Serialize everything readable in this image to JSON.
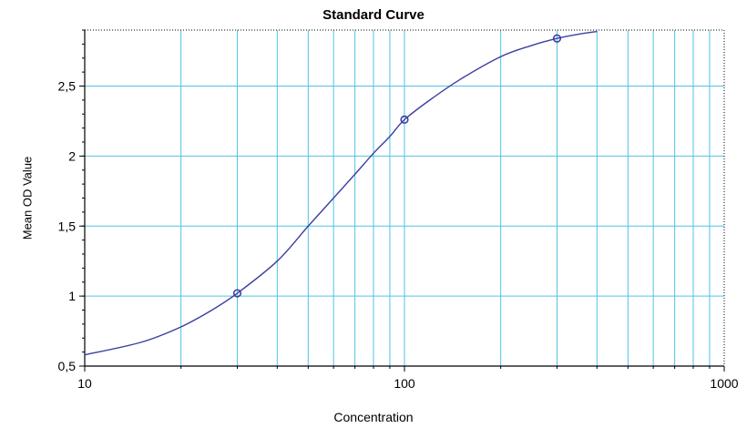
{
  "chart_data": {
    "type": "line",
    "title": "Standard Curve",
    "xlabel": "Concentration",
    "ylabel": "Mean OD Value",
    "x_scale": "log",
    "xlim": [
      10,
      1000
    ],
    "ylim": [
      0.5,
      2.9
    ],
    "grid": true,
    "x_ticks": [
      10,
      100,
      1000
    ],
    "x_tick_labels": [
      "10",
      "100",
      "1000"
    ],
    "y_ticks": [
      0.5,
      1,
      1.5,
      2,
      2.5
    ],
    "y_tick_labels": [
      "0,5",
      "1",
      "1,5",
      "2",
      "2,5"
    ],
    "series": [
      {
        "kind": "points",
        "x": [
          30,
          100,
          300
        ],
        "y": [
          1.02,
          2.26,
          2.84
        ]
      },
      {
        "kind": "fitted-curve",
        "x": [
          10,
          15,
          20,
          25,
          30,
          40,
          50,
          60,
          70,
          80,
          90,
          100,
          120,
          150,
          200,
          250,
          300,
          350,
          400
        ],
        "y": [
          0.58,
          0.67,
          0.78,
          0.9,
          1.02,
          1.25,
          1.5,
          1.7,
          1.87,
          2.02,
          2.14,
          2.26,
          2.4,
          2.55,
          2.71,
          2.79,
          2.84,
          2.87,
          2.89
        ]
      }
    ],
    "colors": {
      "curve": "#3b3fa0",
      "grid": "#4fc3e6",
      "axis": "#000000"
    }
  }
}
